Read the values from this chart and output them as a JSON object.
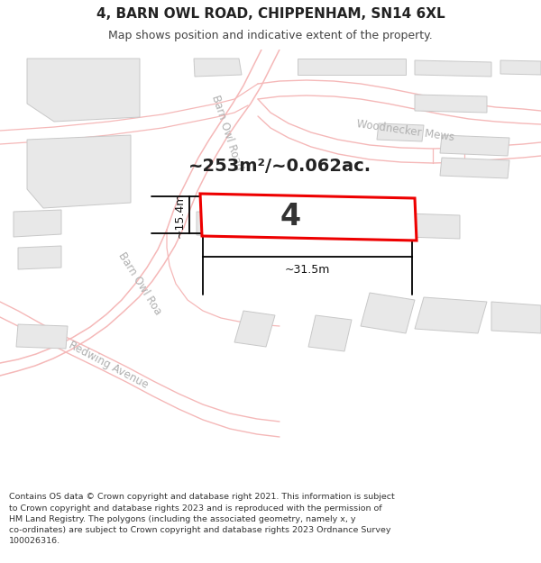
{
  "title": "4, BARN OWL ROAD, CHIPPENHAM, SN14 6XL",
  "subtitle": "Map shows position and indicative extent of the property.",
  "footer_text": "Contains OS data © Crown copyright and database right 2021. This information is subject\nto Crown copyright and database rights 2023 and is reproduced with the permission of\nHM Land Registry. The polygons (including the associated geometry, namely x, y\nco-ordinates) are subject to Crown copyright and database rights 2023 Ordnance Survey\n100026316.",
  "bg_color": "#ffffff",
  "road_color": "#f5b8b8",
  "road_lw": 1.0,
  "building_fill": "#e8e8e8",
  "building_edge": "#c8c8c8",
  "plot_fill": "#ffffff",
  "plot_color": "#ee0000",
  "plot_lw": 2.2,
  "road_label_color": "#b0b0b0",
  "area_label": "~253m²/~0.062ac.",
  "plot_number": "4",
  "dim_width": "~31.5m",
  "dim_height": "~15.4m",
  "title_fontsize": 11,
  "subtitle_fontsize": 9,
  "footer_fontsize": 6.8,
  "area_fontsize": 14,
  "plot_num_fontsize": 24,
  "dim_fontsize": 9,
  "road_fontsize": 8.5
}
